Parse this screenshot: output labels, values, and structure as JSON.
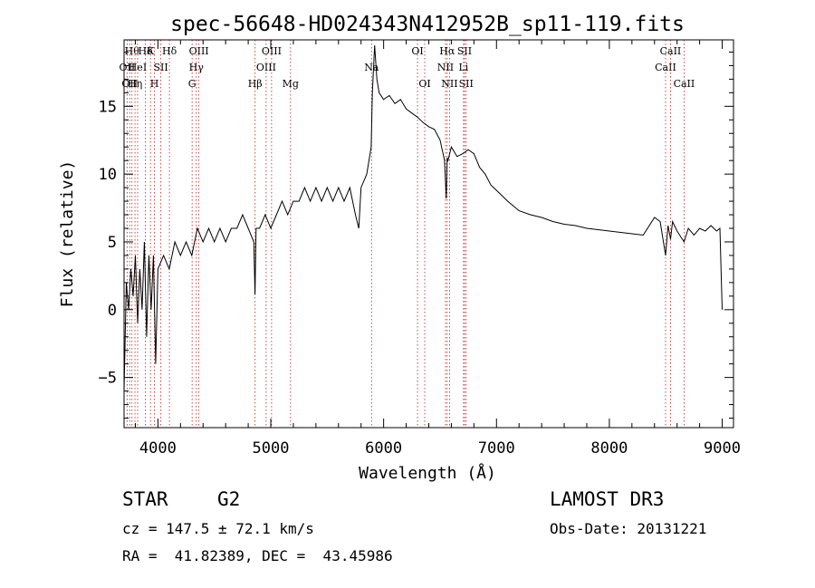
{
  "chart_data": {
    "type": "line",
    "title": "spec-56648-HD024343N412952B_sp11-119.fits",
    "xlabel": "Wavelength (Å)",
    "ylabel": "Flux (relative)",
    "xlim": [
      3700,
      9100
    ],
    "ylim": [
      -8.7,
      19.9
    ],
    "xticks": [
      4000,
      5000,
      6000,
      7000,
      8000,
      9000
    ],
    "yticks": [
      -5,
      0,
      5,
      10,
      15
    ],
    "series": [
      {
        "name": "flux",
        "x": [
          3700,
          3720,
          3740,
          3760,
          3780,
          3800,
          3820,
          3840,
          3860,
          3880,
          3900,
          3920,
          3940,
          3960,
          3980,
          4000,
          4050,
          4100,
          4150,
          4200,
          4250,
          4300,
          4350,
          4400,
          4450,
          4500,
          4550,
          4600,
          4650,
          4700,
          4750,
          4800,
          4850,
          4860,
          4870,
          4900,
          4950,
          5000,
          5050,
          5100,
          5150,
          5200,
          5250,
          5300,
          5350,
          5400,
          5450,
          5500,
          5550,
          5600,
          5650,
          5700,
          5750,
          5780,
          5800,
          5850,
          5890,
          5900,
          5920,
          5940,
          5960,
          6000,
          6050,
          6100,
          6150,
          6200,
          6250,
          6300,
          6350,
          6400,
          6450,
          6500,
          6540,
          6555,
          6563,
          6570,
          6600,
          6650,
          6700,
          6750,
          6800,
          6850,
          6900,
          6950,
          7000,
          7100,
          7200,
          7300,
          7400,
          7500,
          7600,
          7700,
          7800,
          7900,
          8000,
          8100,
          8200,
          8300,
          8400,
          8450,
          8498,
          8520,
          8542,
          8560,
          8600,
          8662,
          8700,
          8750,
          8800,
          8850,
          8900,
          8950,
          8980,
          9000
        ],
        "values": [
          -6,
          2,
          0,
          3,
          1,
          4,
          -1,
          3,
          0,
          5,
          -2,
          4,
          0,
          4,
          -4,
          3,
          4,
          3,
          5,
          4,
          5,
          4,
          6,
          5,
          6,
          5,
          6,
          5,
          6,
          6,
          7,
          6,
          5,
          1.1,
          6,
          6,
          7,
          6,
          7,
          8,
          7,
          8,
          8,
          9,
          8,
          9,
          8,
          9,
          8,
          9,
          8,
          9,
          7,
          6,
          9,
          10,
          12,
          16,
          19.5,
          17,
          16,
          15.5,
          15.8,
          15.2,
          15.5,
          14.8,
          14.5,
          14.2,
          13.8,
          13.5,
          13.3,
          12.5,
          11,
          8.2,
          11.2,
          11,
          12,
          11.3,
          11.5,
          11.8,
          11.5,
          10.5,
          10,
          9.2,
          8.8,
          8,
          7.3,
          7.0,
          6.8,
          6.5,
          6.3,
          6.2,
          6.0,
          5.9,
          5.8,
          5.7,
          5.6,
          5.5,
          6.8,
          6.5,
          4.0,
          6.2,
          5.2,
          6.5,
          5.8,
          5.0,
          6.0,
          5.5,
          6.0,
          5.8,
          6.2,
          5.8,
          6.0,
          0
        ]
      }
    ],
    "lines": [
      {
        "wl": 3727,
        "labels": [
          "OII"
        ],
        "row": 1
      },
      {
        "wl": 3750,
        "labels": [
          "OII"
        ],
        "row": 2
      },
      {
        "wl": 3770,
        "labels": [
          "Hθ"
        ],
        "row": 0
      },
      {
        "wl": 3797,
        "labels": [
          "Hη"
        ],
        "row": 2
      },
      {
        "wl": 3820,
        "labels": [
          "HeI"
        ],
        "row": 1
      },
      {
        "wl": 3889,
        "labels": [
          "Hδ"
        ],
        "row": 0
      },
      {
        "wl": 3934,
        "labels": [
          "K"
        ],
        "row": 0
      },
      {
        "wl": 3969,
        "labels": [
          "H"
        ],
        "row": 2
      },
      {
        "wl": 4026,
        "labels": [
          "SII"
        ],
        "row": 1
      },
      {
        "wl": 4102,
        "labels": [
          "Hδ"
        ],
        "row": 0
      },
      {
        "wl": 4303,
        "labels": [
          "G"
        ],
        "row": 2
      },
      {
        "wl": 4340,
        "labels": [
          "Hγ"
        ],
        "row": 1
      },
      {
        "wl": 4363,
        "labels": [
          "OIII"
        ],
        "row": 0
      },
      {
        "wl": 4861,
        "labels": [
          "Hβ"
        ],
        "row": 2
      },
      {
        "wl": 4959,
        "labels": [
          "OIII"
        ],
        "row": 1
      },
      {
        "wl": 5007,
        "labels": [
          "OIII"
        ],
        "row": 0
      },
      {
        "wl": 5175,
        "labels": [
          "Mg"
        ],
        "row": 2
      },
      {
        "wl": 5893,
        "labels": [
          "Na"
        ],
        "row": 1
      },
      {
        "wl": 6300,
        "labels": [
          "OI"
        ],
        "row": 0
      },
      {
        "wl": 6364,
        "labels": [
          "OI"
        ],
        "row": 2
      },
      {
        "wl": 6548,
        "labels": [
          "NII"
        ],
        "row": 1
      },
      {
        "wl": 6563,
        "labels": [
          "Hα"
        ],
        "row": 0
      },
      {
        "wl": 6584,
        "labels": [
          "NII"
        ],
        "row": 2
      },
      {
        "wl": 6708,
        "labels": [
          "Li"
        ],
        "row": 1
      },
      {
        "wl": 6717,
        "labels": [
          "SII"
        ],
        "row": 0
      },
      {
        "wl": 6731,
        "labels": [
          "SII"
        ],
        "row": 2
      },
      {
        "wl": 8498,
        "labels": [
          "CaII"
        ],
        "row": 1
      },
      {
        "wl": 8542,
        "labels": [
          "CaII"
        ],
        "row": 0
      },
      {
        "wl": 8662,
        "labels": [
          "CaII"
        ],
        "row": 2
      }
    ]
  },
  "footer": {
    "object_class": "STAR",
    "subclass": "G2",
    "survey": "LAMOST DR3",
    "cz": "cz = 147.5 ± 72.1 km/s",
    "obs_date": "Obs-Date: 20131221",
    "coords": "RA =  41.82389, DEC =  43.45986"
  }
}
